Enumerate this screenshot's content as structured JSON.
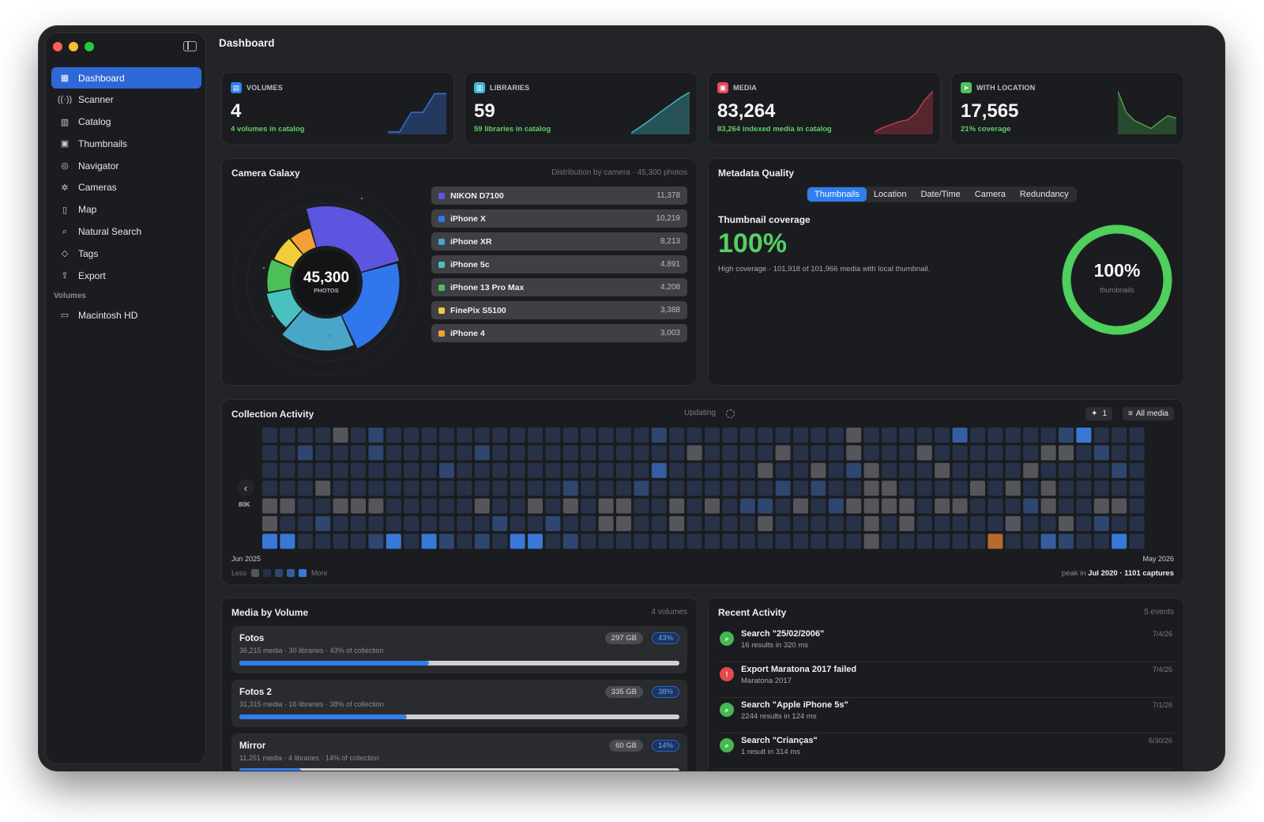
{
  "window": {
    "title": "Dashboard"
  },
  "sidebar": {
    "items": [
      {
        "label": "Dashboard",
        "icon": "grid-icon",
        "glyph": "▦",
        "active": true
      },
      {
        "label": "Scanner",
        "icon": "antenna-icon",
        "glyph": "((·))"
      },
      {
        "label": "Catalog",
        "icon": "books-icon",
        "glyph": "▥"
      },
      {
        "label": "Thumbnails",
        "icon": "photos-icon",
        "glyph": "▣"
      },
      {
        "label": "Navigator",
        "icon": "compass-icon",
        "glyph": "◎"
      },
      {
        "label": "Cameras",
        "icon": "aperture-icon",
        "glyph": "✲"
      },
      {
        "label": "Map",
        "icon": "map-icon",
        "glyph": "▯"
      },
      {
        "label": "Natural Search",
        "icon": "search-icon",
        "glyph": "⌕"
      },
      {
        "label": "Tags",
        "icon": "tag-icon",
        "glyph": "◇"
      },
      {
        "label": "Export",
        "icon": "share-icon",
        "glyph": "⇪"
      }
    ],
    "volumes_header": "Volumes",
    "volumes": [
      {
        "label": "Macintosh HD",
        "icon": "drive-icon",
        "glyph": "▭"
      }
    ]
  },
  "stats": [
    {
      "label": "VOLUMES",
      "value": "4",
      "note": "4 volumes in catalog",
      "color": "#2f7ff0",
      "spark": [
        5,
        5,
        45,
        45,
        83,
        83
      ],
      "spark_color": "#3a6fd8"
    },
    {
      "label": "LIBRARIES",
      "value": "59",
      "note": "59 libraries in catalog",
      "color": "#3ab7d8",
      "spark": [
        3,
        14,
        26,
        39,
        52,
        64,
        76,
        86
      ],
      "spark_color": "#3fb6c4"
    },
    {
      "label": "MEDIA",
      "value": "83,264",
      "note": "83,264 indexed media in catalog",
      "color": "#e8455a",
      "spark": [
        5,
        14,
        20,
        26,
        30,
        44,
        70,
        88
      ],
      "spark_color": "#c23a4a"
    },
    {
      "label": "WITH LOCATION",
      "value": "17,565",
      "note": "21% coverage",
      "color": "#4cc35a",
      "spark": [
        88,
        45,
        28,
        20,
        12,
        26,
        38,
        33
      ],
      "spark_color": "#46a04f"
    }
  ],
  "camera_galaxy": {
    "title": "Camera Galaxy",
    "subtitle": "Distribution by camera · 45,300 photos",
    "total": "45,300",
    "total_label": "PHOTOS",
    "cameras": [
      {
        "name": "NIKON D7100",
        "count": "11,378",
        "value": 11378,
        "color": "#5c55e0"
      },
      {
        "name": "iPhone X",
        "count": "10,219",
        "value": 10219,
        "color": "#3077ee"
      },
      {
        "name": "iPhone XR",
        "count": "8,213",
        "value": 8213,
        "color": "#4aa6c8"
      },
      {
        "name": "iPhone 5c",
        "count": "4,891",
        "value": 4891,
        "color": "#49c2be"
      },
      {
        "name": "iPhone 13 Pro Max",
        "count": "4,208",
        "value": 4208,
        "color": "#4cbf59"
      },
      {
        "name": "FinePix S5100",
        "count": "3,388",
        "value": 3388,
        "color": "#f2cc3a"
      },
      {
        "name": "iPhone 4",
        "count": "3,003",
        "value": 3003,
        "color": "#f29f38"
      }
    ]
  },
  "metadata_quality": {
    "title": "Metadata Quality",
    "tabs": [
      "Thumbnails",
      "Location",
      "Date/Time",
      "Camera",
      "Redundancy"
    ],
    "active_tab": 0,
    "heading": "Thumbnail coverage",
    "big_value": "100%",
    "description": "High coverage · 101,918 of 101,966 media with local thumbnail.",
    "ring_value": "100%",
    "ring_label": "thumbnails",
    "ring_fraction": 1.0,
    "ring_color": "#4fcf5c"
  },
  "collection_activity": {
    "title": "Collection Activity",
    "status": "Updating",
    "pin_label": "1",
    "filter_label": "All media",
    "axis_value": "80K",
    "start_label": "Jun 2025",
    "end_label": "May 2026",
    "legend_less": "Less",
    "legend_more": "More",
    "peak_prefix": "peak in",
    "peak_value": "Jul 2020 · 1101 captures",
    "colors": [
      "#55565b",
      "#273248",
      "#2e4670",
      "#345da2",
      "#3a78d8",
      "#b8692c"
    ],
    "weeks": 50,
    "days": 7
  },
  "media_by_volume": {
    "title": "Media by Volume",
    "subtitle": "4 volumes",
    "volumes": [
      {
        "name": "Fotos",
        "sub": "36,215 media · 30 libraries · 43% of collection",
        "size": "297 GB",
        "pct": "43%",
        "fraction": 0.43
      },
      {
        "name": "Fotos 2",
        "sub": "31,315 media · 16 libraries · 38% of collection",
        "size": "335 GB",
        "pct": "38%",
        "fraction": 0.38
      },
      {
        "name": "Mirror",
        "sub": "11,251 media · 4 libraries · 14% of collection",
        "size": "60 GB",
        "pct": "14%",
        "fraction": 0.14
      }
    ]
  },
  "recent_activity": {
    "title": "Recent Activity",
    "subtitle": "5 events",
    "events": [
      {
        "title": "Search \"25/02/2006\"",
        "sub": "16 results in 320 ms",
        "date": "7/4/26",
        "kind": "search",
        "icon": "search-icon",
        "color": "#46b852"
      },
      {
        "title": "Export Maratona 2017 failed",
        "sub": "Maratona 2017",
        "date": "7/4/26",
        "kind": "error",
        "icon": "export-error-icon",
        "color": "#e5484d"
      },
      {
        "title": "Search \"Apple iPhone 5s\"",
        "sub": "2244 results in 124 ms",
        "date": "7/1/26",
        "kind": "search",
        "icon": "search-icon",
        "color": "#46b852"
      },
      {
        "title": "Search \"Crianças\"",
        "sub": "1 result in 314 ms",
        "date": "6/30/26",
        "kind": "search",
        "icon": "search-icon",
        "color": "#46b852"
      }
    ]
  }
}
